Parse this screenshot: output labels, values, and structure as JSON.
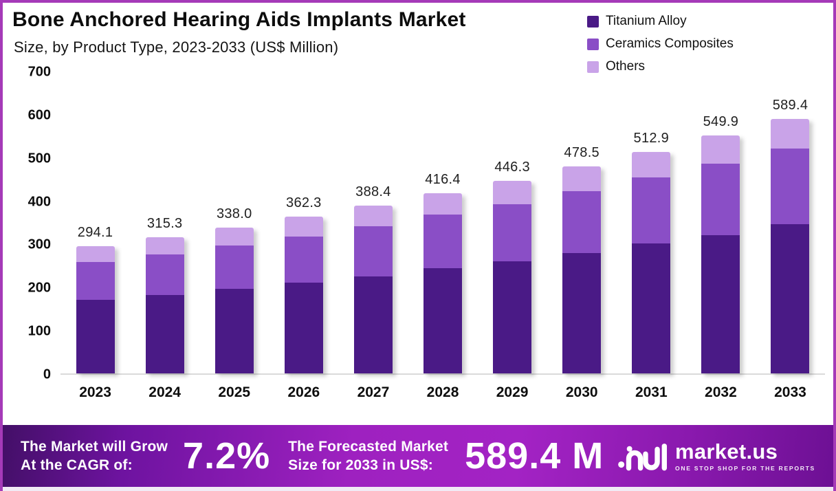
{
  "header": {
    "title": "Bone Anchored Hearing Aids Implants Market",
    "subtitle": "Size, by Product Type, 2023-2033 (US$ Million)"
  },
  "colors": {
    "titanium_alloy": "#4A1A86",
    "ceramics_composites": "#8A4EC6",
    "others": "#C9A3E8",
    "page_border": "#A53AB8",
    "footer_gradient_start": "#430F67",
    "footer_gradient_mid": "#A323C4",
    "footer_gradient_end": "#6D1094"
  },
  "legend": [
    {
      "label": "Titanium Alloy",
      "color": "#4A1A86"
    },
    {
      "label": "Ceramics Composites",
      "color": "#8A4EC6"
    },
    {
      "label": "Others",
      "color": "#C9A3E8"
    }
  ],
  "chart_data": {
    "type": "bar",
    "stacked": true,
    "title": "Bone Anchored Hearing Aids Implants Market Size, by Product Type, 2023-2033 (US$ Million)",
    "xlabel": "",
    "ylabel": "",
    "ylim": [
      0,
      700
    ],
    "yticks": [
      0,
      100,
      200,
      300,
      400,
      500,
      600,
      700
    ],
    "grid": false,
    "legend_position": "top-right",
    "categories": [
      "2023",
      "2024",
      "2025",
      "2026",
      "2027",
      "2028",
      "2029",
      "2030",
      "2031",
      "2032",
      "2033"
    ],
    "series": [
      {
        "name": "Titanium Alloy",
        "color": "#4A1A86",
        "values": [
          170,
          181,
          195,
          210,
          225,
          243,
          260,
          279,
          300,
          320,
          345
        ]
      },
      {
        "name": "Ceramics Composites",
        "color": "#8A4EC6",
        "values": [
          88,
          95,
          101,
          107,
          116,
          124,
          132,
          143,
          153,
          165,
          175
        ]
      },
      {
        "name": "Others",
        "color": "#C9A3E8",
        "values": [
          36.1,
          39.3,
          42.0,
          45.3,
          47.4,
          49.4,
          54.3,
          56.5,
          59.9,
          64.9,
          69.4
        ]
      }
    ],
    "totals": [
      294.1,
      315.3,
      338.0,
      362.3,
      388.4,
      416.4,
      446.3,
      478.5,
      512.9,
      549.9,
      589.4
    ],
    "total_labels": [
      "294.1",
      "315.3",
      "338.0",
      "362.3",
      "388.4",
      "416.4",
      "446.3",
      "478.5",
      "512.9",
      "549.9",
      "589.4"
    ]
  },
  "footer": {
    "cagr_label_line1": "The Market will Grow",
    "cagr_label_line2": "At the CAGR of:",
    "cagr_value": "7.2%",
    "forecast_label_line1": "The Forecasted Market",
    "forecast_label_line2": "Size for 2033 in US$:",
    "forecast_value": "589.4 M",
    "brand": "market.us",
    "brand_tagline": "ONE STOP SHOP FOR THE REPORTS"
  }
}
